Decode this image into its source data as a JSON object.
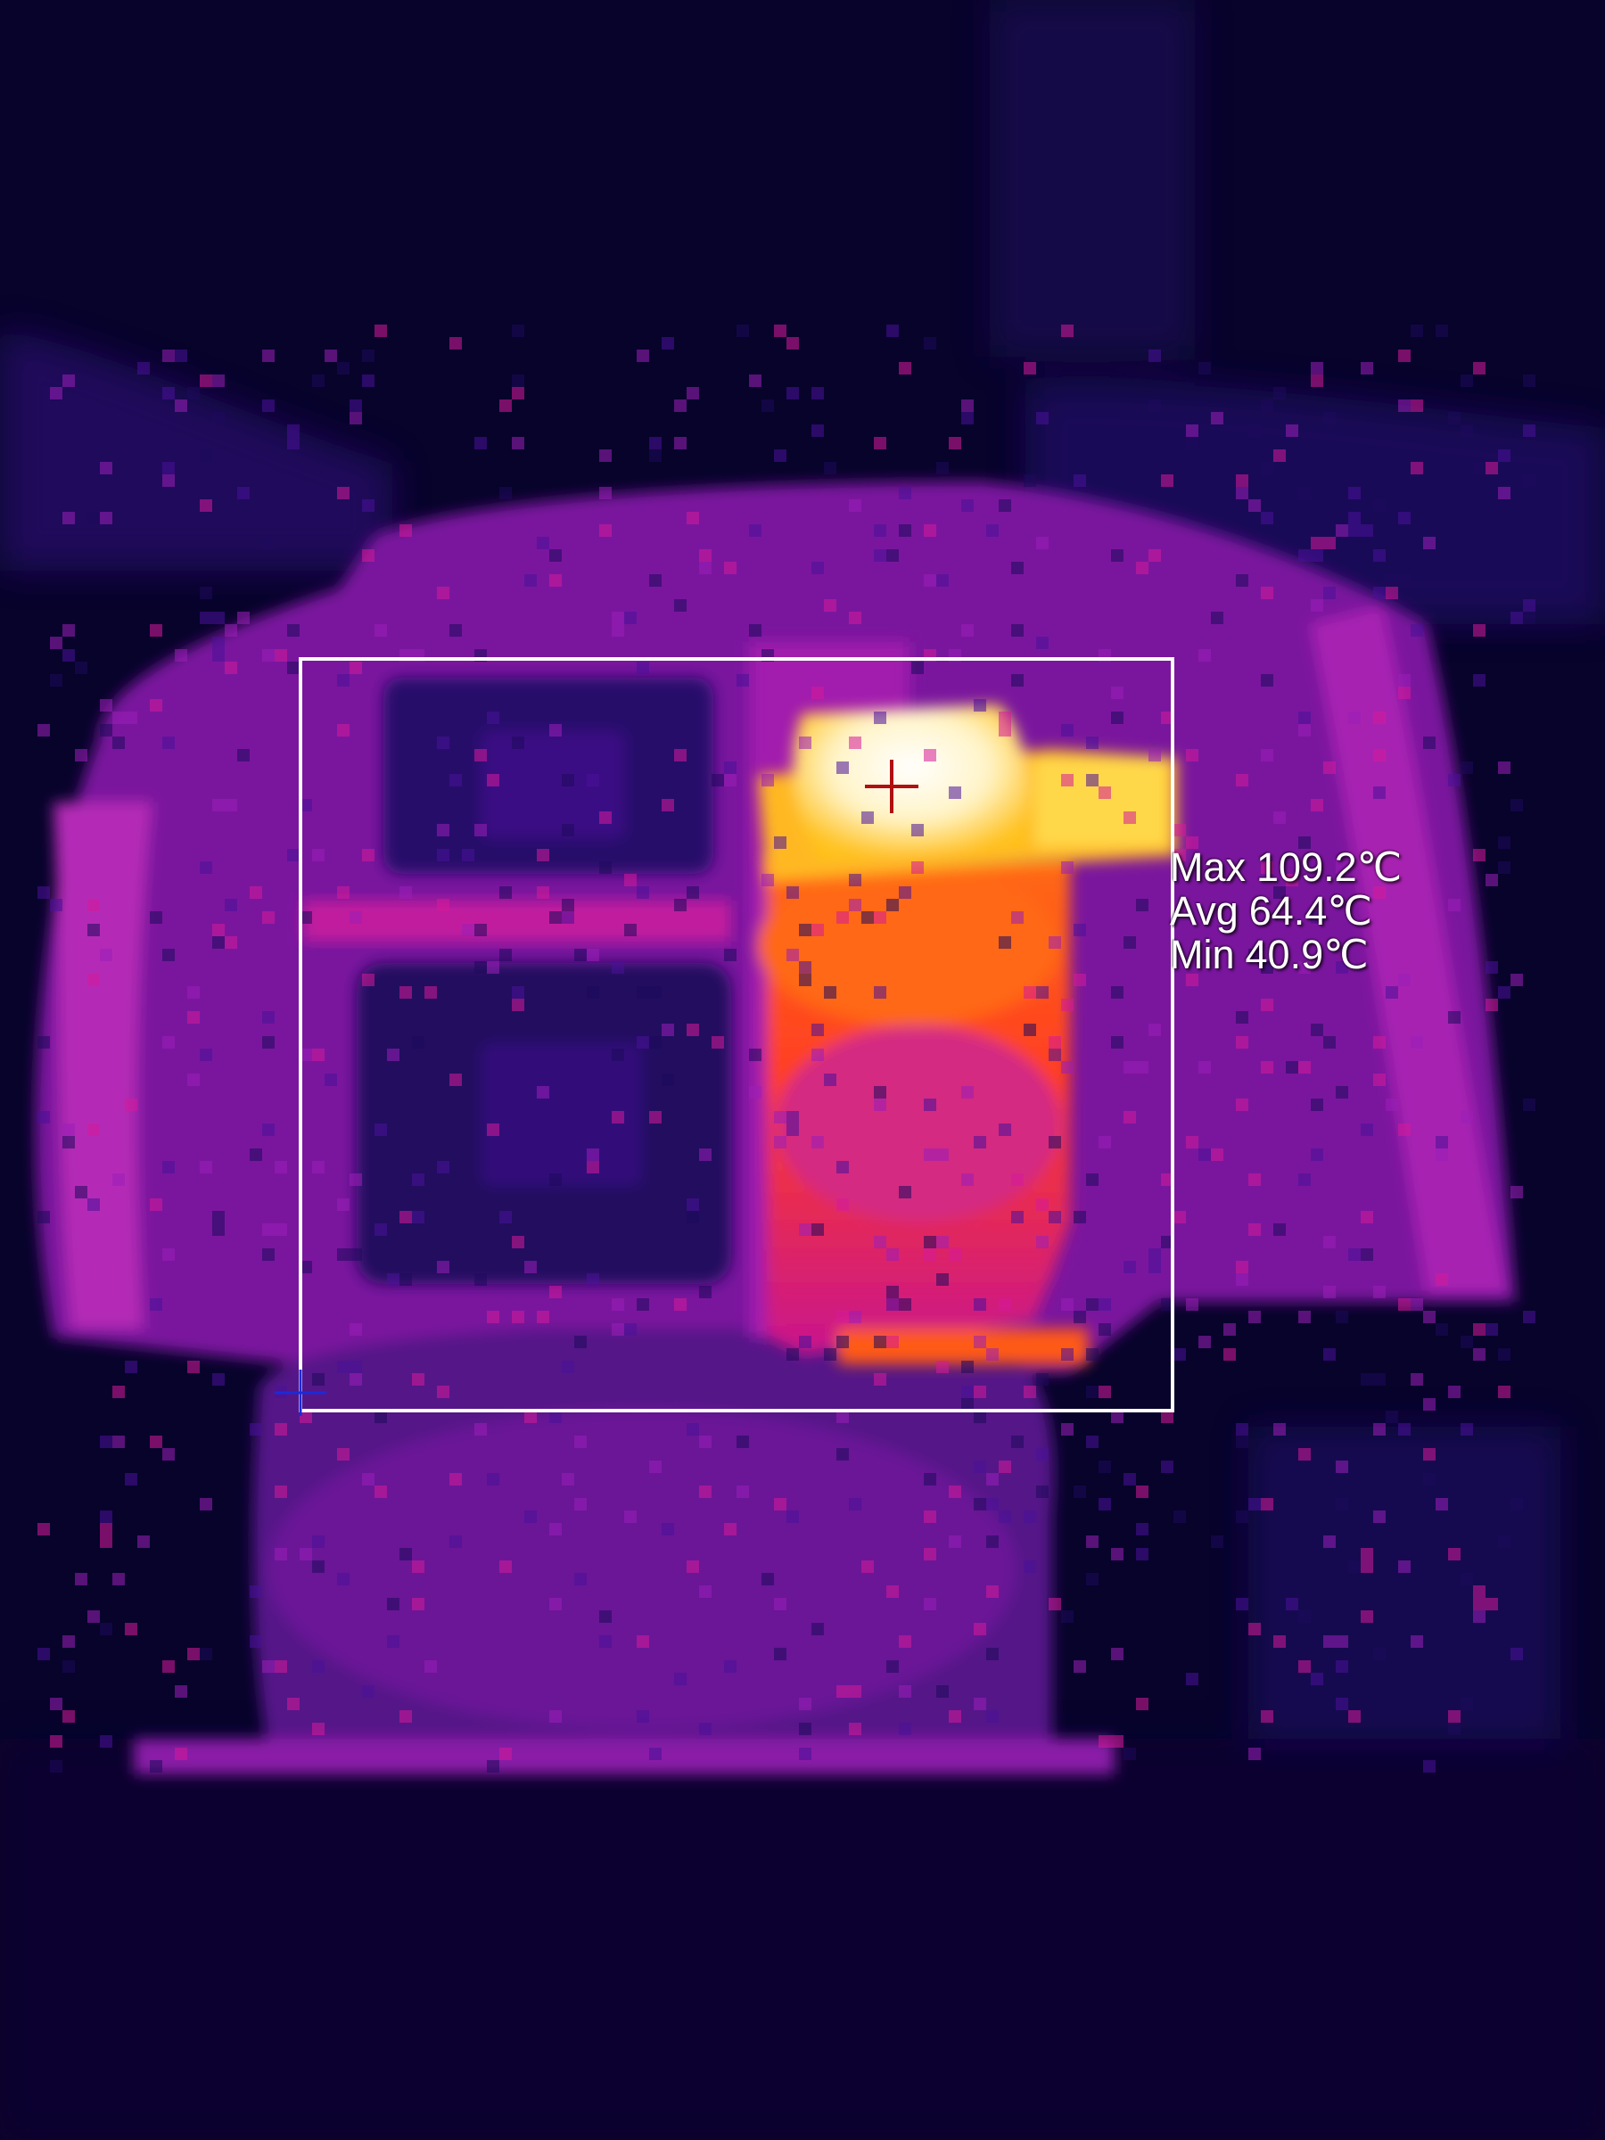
{
  "palette": {
    "background": "#07032b",
    "cold": "#1e0a5c",
    "cool": "#4a119a",
    "mid": "#9b1fb8",
    "warm": "#d61a9a",
    "hot": "#ff5a14",
    "hotter": "#ffb01a",
    "hottest": "#fffbe8",
    "roi_frame": "#ffffff",
    "hotspot_marker": "#b01010",
    "coldspot_marker": "#1a2bd8"
  },
  "markers": {
    "hotspot": "crosshair-red",
    "coldspot": "crosshair-blue"
  },
  "roi_stats": {
    "max_label": "Max",
    "max_value": "109.2℃",
    "avg_label": "Avg",
    "avg_value": "64.4℃",
    "min_label": "Min",
    "min_value": "40.9℃"
  }
}
